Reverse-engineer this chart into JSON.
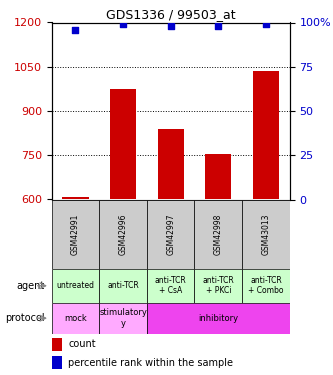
{
  "title": "GDS1336 / 99503_at",
  "samples": [
    "GSM42991",
    "GSM42996",
    "GSM42997",
    "GSM42998",
    "GSM43013"
  ],
  "count_values": [
    610,
    975,
    840,
    755,
    1035
  ],
  "percentile_values": [
    96,
    99,
    98,
    98,
    99
  ],
  "ylim_left": [
    600,
    1200
  ],
  "ylim_right": [
    0,
    100
  ],
  "yticks_left": [
    600,
    750,
    900,
    1050,
    1200
  ],
  "yticks_right": [
    0,
    25,
    50,
    75,
    100
  ],
  "bar_color": "#cc0000",
  "dot_color": "#0000cc",
  "agent_labels": [
    "untreated",
    "anti-TCR",
    "anti-TCR\n+ CsA",
    "anti-TCR\n+ PKCi",
    "anti-TCR\n+ Combo"
  ],
  "agent_bg": "#ccffcc",
  "sample_bg": "#cccccc",
  "left_label_color": "#cc0000",
  "right_label_color": "#0000cc",
  "protocol_info": [
    {
      "label": "mock",
      "span": [
        0,
        1
      ],
      "color": "#ffaaff"
    },
    {
      "label": "stimulatory\ny",
      "span": [
        1,
        2
      ],
      "color": "#ffaaff"
    },
    {
      "label": "inhibitory",
      "span": [
        2,
        5
      ],
      "color": "#ee44ee"
    }
  ]
}
